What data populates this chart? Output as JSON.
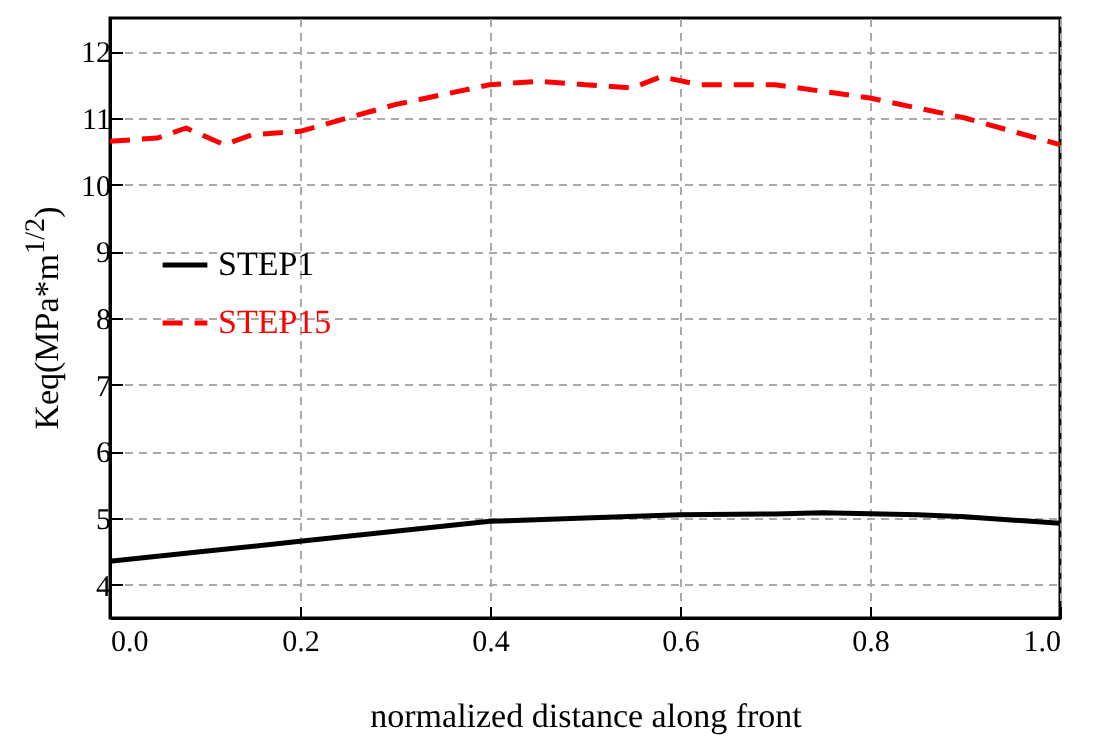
{
  "chart_data": {
    "type": "line",
    "xlabel": "normalized distance along front",
    "ylabel": "Keq(MPa*m$^{1/2}$)",
    "xlim": [
      0,
      1
    ],
    "xticks": [
      {
        "value": 0,
        "label": "0.0"
      },
      0.2,
      0.4,
      0.6,
      0.8,
      {
        "value": 1,
        "label": "1.0"
      }
    ],
    "ylim": [
      3.5,
      12.5
    ],
    "yticks": [
      4,
      5,
      6,
      7,
      8,
      9,
      10,
      11,
      12
    ],
    "grid": true,
    "legend": "left",
    "series": [
      {
        "name": "STEP1",
        "color": "#000000",
        "line_style": "solid",
        "x": [
          0,
          0.1,
          0.2,
          0.3,
          0.4,
          0.5,
          0.6,
          0.7,
          0.75,
          0.85,
          0.9,
          1.0
        ],
        "values": [
          4.35,
          4.5,
          4.65,
          4.8,
          4.95,
          5.0,
          5.05,
          5.06,
          5.08,
          5.05,
          5.02,
          4.92
        ]
      },
      {
        "name": "STEP15",
        "color": "#ff0000",
        "line_style": "dashed",
        "x": [
          0,
          0.05,
          0.08,
          0.12,
          0.15,
          0.2,
          0.3,
          0.4,
          0.45,
          0.5,
          0.55,
          0.58,
          0.62,
          0.7,
          0.8,
          0.9,
          1.0
        ],
        "values": [
          10.65,
          10.7,
          10.85,
          10.6,
          10.75,
          10.8,
          11.2,
          11.5,
          11.55,
          11.5,
          11.45,
          11.62,
          11.5,
          11.5,
          11.3,
          11.0,
          10.6
        ]
      }
    ]
  }
}
